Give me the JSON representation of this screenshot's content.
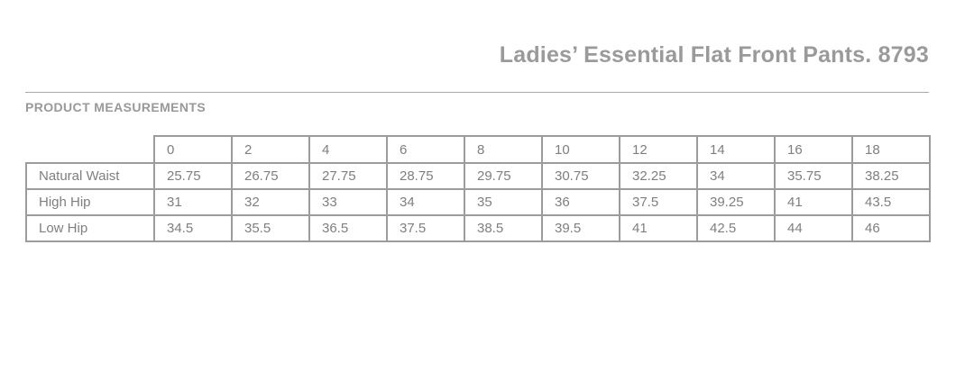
{
  "header": {
    "title": "Ladies’ Essential Flat Front Pants. 8793",
    "section_heading": "PRODUCT MEASUREMENTS"
  },
  "colors": {
    "title_gray": "#9a9a9a",
    "heading_gray": "#999999",
    "table_text_gray": "#7f7f7f",
    "table_border_gray": "#9c9c9c",
    "divider_gray": "#a9a9a9"
  },
  "table": {
    "sizes": [
      "0",
      "2",
      "4",
      "6",
      "8",
      "10",
      "12",
      "14",
      "16",
      "18"
    ],
    "rows": [
      {
        "label": "Natural Waist",
        "values": [
          "25.75",
          "26.75",
          "27.75",
          "28.75",
          "29.75",
          "30.75",
          "32.25",
          "34",
          "35.75",
          "38.25"
        ]
      },
      {
        "label": "High Hip",
        "values": [
          "31",
          "32",
          "33",
          "34",
          "35",
          "36",
          "37.5",
          "39.25",
          "41",
          "43.5"
        ]
      },
      {
        "label": "Low Hip",
        "values": [
          "34.5",
          "35.5",
          "36.5",
          "37.5",
          "38.5",
          "39.5",
          "41",
          "42.5",
          "44",
          "46"
        ]
      }
    ]
  }
}
